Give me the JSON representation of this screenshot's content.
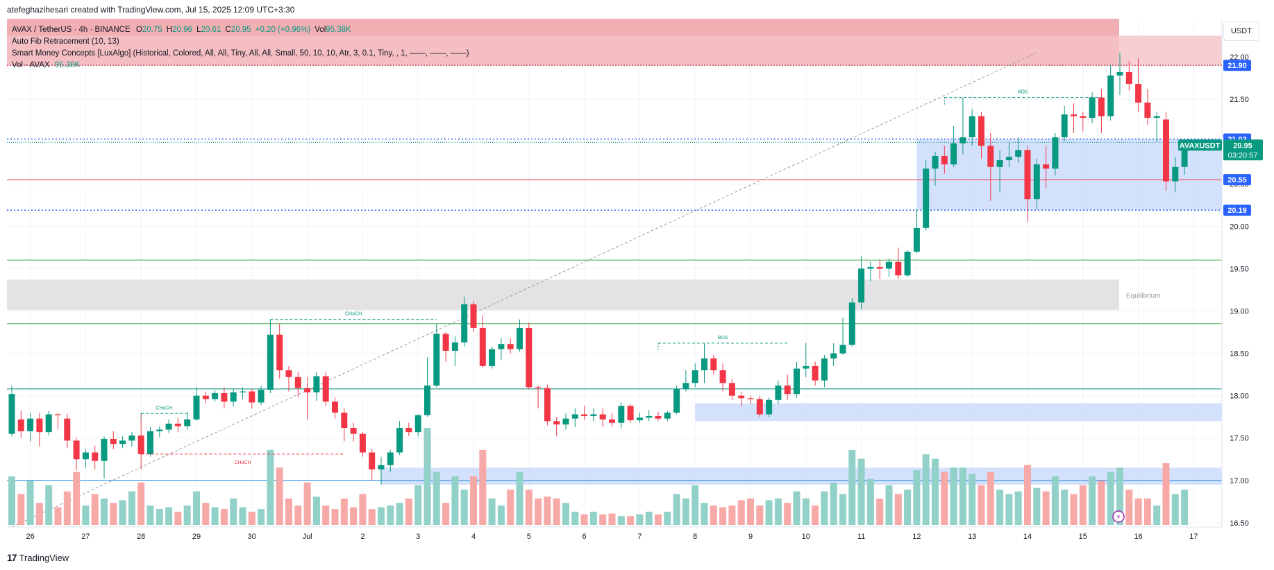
{
  "header": {
    "created_by": "atefeghazihesari created with TradingView.com, Jul 15, 2025 12:09 UTC+3:30"
  },
  "legend": {
    "symbol": "AVAX / TetherUS · 4h · BINANCE",
    "o_label": "O",
    "o": "20.75",
    "h_label": "H",
    "h": "20.96",
    "l_label": "L",
    "l": "20.61",
    "c_label": "C",
    "c": "20.95",
    "change": "+0.20 (+0.96%)",
    "vol_label": "Vol",
    "vol": "95.38K",
    "fib": "Auto Fib Retracement (10, 13)",
    "smc": "Smart Money Concepts [LuxAlgo] (Historical, Colored, All, All, Tiny, All, All, Small, 50, 10, 10, Atr, 3, 0.1, Tiny, , 1, ——, ——, ——)",
    "vol_study": "Vol · AVAX",
    "vol_study_value": "95.38K"
  },
  "currency_button": "USDT",
  "footer": {
    "brand": "TradingView",
    "logo": "tv-logo-icon"
  },
  "colors": {
    "up": "#089981",
    "down": "#f23645",
    "vol_up": "#92d1c8",
    "vol_down": "#f7a9a7",
    "supply_zone": "#f0a8ae",
    "demand_zone": "#cddcfb",
    "equilibrium": "#e3e3e5",
    "fib_line": "#9e9e9e",
    "green_line": "#4caf50",
    "blue_line": "#2962ff"
  },
  "chart_data": {
    "type": "candlestick",
    "timeframe": "4h",
    "ylim": [
      16.45,
      22.45
    ],
    "y_ticks": [
      "16.50",
      "17.00",
      "17.50",
      "18.00",
      "18.50",
      "19.00",
      "19.50",
      "20.00",
      "20.50",
      "21.00",
      "21.50",
      "22.00"
    ],
    "x_ticks": [
      {
        "label": "26",
        "i": 2
      },
      {
        "label": "27",
        "i": 8
      },
      {
        "label": "28",
        "i": 14
      },
      {
        "label": "29",
        "i": 20
      },
      {
        "label": "30",
        "i": 26
      },
      {
        "label": "Jul",
        "i": 32
      },
      {
        "label": "2",
        "i": 38
      },
      {
        "label": "3",
        "i": 44
      },
      {
        "label": "4",
        "i": 50
      },
      {
        "label": "5",
        "i": 56
      },
      {
        "label": "6",
        "i": 62
      },
      {
        "label": "7",
        "i": 68
      },
      {
        "label": "8",
        "i": 74
      },
      {
        "label": "9",
        "i": 80
      },
      {
        "label": "10",
        "i": 86
      },
      {
        "label": "11",
        "i": 92
      },
      {
        "label": "12",
        "i": 98
      },
      {
        "label": "13",
        "i": 104
      },
      {
        "label": "14",
        "i": 110
      },
      {
        "label": "15",
        "i": 116
      },
      {
        "label": "16",
        "i": 122
      },
      {
        "label": "17",
        "i": 128
      }
    ],
    "candles": [
      {
        "o": 17.55,
        "h": 18.12,
        "l": 17.52,
        "c": 18.02,
        "v": 55
      },
      {
        "o": 17.72,
        "h": 17.82,
        "l": 17.5,
        "c": 17.58,
        "v": 35
      },
      {
        "o": 17.58,
        "h": 17.8,
        "l": 17.46,
        "c": 17.73,
        "v": 50
      },
      {
        "o": 17.73,
        "h": 17.8,
        "l": 17.4,
        "c": 17.57,
        "v": 25
      },
      {
        "o": 17.57,
        "h": 17.82,
        "l": 17.53,
        "c": 17.78,
        "v": 45
      },
      {
        "o": 17.78,
        "h": 17.8,
        "l": 17.6,
        "c": 17.77,
        "v": 20
      },
      {
        "o": 17.73,
        "h": 17.79,
        "l": 17.38,
        "c": 17.47,
        "v": 38
      },
      {
        "o": 17.47,
        "h": 17.5,
        "l": 17.12,
        "c": 17.25,
        "v": 60
      },
      {
        "o": 17.25,
        "h": 17.37,
        "l": 17.15,
        "c": 17.33,
        "v": 22
      },
      {
        "o": 17.33,
        "h": 17.41,
        "l": 17.13,
        "c": 17.23,
        "v": 35
      },
      {
        "o": 17.23,
        "h": 17.52,
        "l": 17.02,
        "c": 17.49,
        "v": 30
      },
      {
        "o": 17.49,
        "h": 17.58,
        "l": 17.37,
        "c": 17.43,
        "v": 25
      },
      {
        "o": 17.43,
        "h": 17.52,
        "l": 17.38,
        "c": 17.47,
        "v": 28
      },
      {
        "o": 17.47,
        "h": 17.57,
        "l": 17.4,
        "c": 17.53,
        "v": 38
      },
      {
        "o": 17.53,
        "h": 17.8,
        "l": 17.13,
        "c": 17.31,
        "v": 48
      },
      {
        "o": 17.31,
        "h": 17.63,
        "l": 17.28,
        "c": 17.58,
        "v": 22
      },
      {
        "o": 17.58,
        "h": 17.64,
        "l": 17.51,
        "c": 17.6,
        "v": 18
      },
      {
        "o": 17.6,
        "h": 17.72,
        "l": 17.56,
        "c": 17.67,
        "v": 20
      },
      {
        "o": 17.67,
        "h": 17.74,
        "l": 17.57,
        "c": 17.64,
        "v": 15
      },
      {
        "o": 17.64,
        "h": 17.81,
        "l": 17.6,
        "c": 17.72,
        "v": 22
      },
      {
        "o": 17.72,
        "h": 18.1,
        "l": 17.7,
        "c": 18.0,
        "v": 38
      },
      {
        "o": 18.0,
        "h": 18.05,
        "l": 17.91,
        "c": 17.96,
        "v": 25
      },
      {
        "o": 17.96,
        "h": 18.06,
        "l": 17.93,
        "c": 18.03,
        "v": 20
      },
      {
        "o": 18.03,
        "h": 18.1,
        "l": 17.85,
        "c": 17.93,
        "v": 18
      },
      {
        "o": 17.93,
        "h": 18.08,
        "l": 17.87,
        "c": 18.04,
        "v": 30
      },
      {
        "o": 18.04,
        "h": 18.1,
        "l": 17.96,
        "c": 18.05,
        "v": 20
      },
      {
        "o": 18.05,
        "h": 18.08,
        "l": 17.85,
        "c": 17.92,
        "v": 15
      },
      {
        "o": 17.92,
        "h": 18.12,
        "l": 17.89,
        "c": 18.07,
        "v": 18
      },
      {
        "o": 18.07,
        "h": 18.9,
        "l": 18.03,
        "c": 18.72,
        "v": 85
      },
      {
        "o": 18.72,
        "h": 18.85,
        "l": 18.2,
        "c": 18.3,
        "v": 65
      },
      {
        "o": 18.3,
        "h": 18.35,
        "l": 18.05,
        "c": 18.22,
        "v": 30
      },
      {
        "o": 18.22,
        "h": 18.28,
        "l": 17.98,
        "c": 18.09,
        "v": 22
      },
      {
        "o": 18.09,
        "h": 18.22,
        "l": 17.72,
        "c": 18.04,
        "v": 48
      },
      {
        "o": 18.04,
        "h": 18.28,
        "l": 17.94,
        "c": 18.23,
        "v": 32
      },
      {
        "o": 18.23,
        "h": 18.28,
        "l": 17.88,
        "c": 17.93,
        "v": 22
      },
      {
        "o": 17.93,
        "h": 17.98,
        "l": 17.73,
        "c": 17.8,
        "v": 18
      },
      {
        "o": 17.8,
        "h": 17.85,
        "l": 17.46,
        "c": 17.62,
        "v": 30
      },
      {
        "o": 17.62,
        "h": 17.68,
        "l": 17.46,
        "c": 17.55,
        "v": 20
      },
      {
        "o": 17.55,
        "h": 17.57,
        "l": 17.28,
        "c": 17.33,
        "v": 35
      },
      {
        "o": 17.33,
        "h": 17.37,
        "l": 17.0,
        "c": 17.13,
        "v": 18
      },
      {
        "o": 17.13,
        "h": 17.28,
        "l": 16.95,
        "c": 17.18,
        "v": 20
      },
      {
        "o": 17.18,
        "h": 17.36,
        "l": 17.1,
        "c": 17.33,
        "v": 22
      },
      {
        "o": 17.33,
        "h": 17.7,
        "l": 17.3,
        "c": 17.62,
        "v": 25
      },
      {
        "o": 17.62,
        "h": 17.68,
        "l": 17.52,
        "c": 17.57,
        "v": 30
      },
      {
        "o": 17.57,
        "h": 17.78,
        "l": 17.52,
        "c": 17.77,
        "v": 45
      },
      {
        "o": 17.77,
        "h": 18.45,
        "l": 17.75,
        "c": 18.12,
        "v": 110
      },
      {
        "o": 18.12,
        "h": 18.85,
        "l": 18.1,
        "c": 18.73,
        "v": 60
      },
      {
        "o": 18.73,
        "h": 18.75,
        "l": 18.4,
        "c": 18.53,
        "v": 25
      },
      {
        "o": 18.53,
        "h": 18.7,
        "l": 18.35,
        "c": 18.63,
        "v": 55
      },
      {
        "o": 18.63,
        "h": 19.17,
        "l": 18.58,
        "c": 19.08,
        "v": 40
      },
      {
        "o": 19.08,
        "h": 19.12,
        "l": 18.75,
        "c": 18.8,
        "v": 55
      },
      {
        "o": 18.8,
        "h": 18.95,
        "l": 18.33,
        "c": 18.35,
        "v": 85
      },
      {
        "o": 18.35,
        "h": 18.58,
        "l": 18.32,
        "c": 18.55,
        "v": 30
      },
      {
        "o": 18.55,
        "h": 18.68,
        "l": 18.42,
        "c": 18.61,
        "v": 22
      },
      {
        "o": 18.61,
        "h": 18.68,
        "l": 18.5,
        "c": 18.55,
        "v": 40
      },
      {
        "o": 18.55,
        "h": 18.9,
        "l": 18.52,
        "c": 18.8,
        "v": 60
      },
      {
        "o": 18.8,
        "h": 18.86,
        "l": 18.08,
        "c": 18.1,
        "v": 40
      },
      {
        "o": 18.1,
        "h": 18.12,
        "l": 17.85,
        "c": 18.09,
        "v": 30
      },
      {
        "o": 18.09,
        "h": 18.13,
        "l": 17.65,
        "c": 17.7,
        "v": 32
      },
      {
        "o": 17.7,
        "h": 17.75,
        "l": 17.52,
        "c": 17.66,
        "v": 30
      },
      {
        "o": 17.66,
        "h": 17.79,
        "l": 17.6,
        "c": 17.73,
        "v": 25
      },
      {
        "o": 17.73,
        "h": 17.85,
        "l": 17.63,
        "c": 17.78,
        "v": 15
      },
      {
        "o": 17.78,
        "h": 17.88,
        "l": 17.72,
        "c": 17.76,
        "v": 12
      },
      {
        "o": 17.76,
        "h": 17.85,
        "l": 17.7,
        "c": 17.78,
        "v": 15
      },
      {
        "o": 17.78,
        "h": 17.85,
        "l": 17.63,
        "c": 17.72,
        "v": 12
      },
      {
        "o": 17.72,
        "h": 17.8,
        "l": 17.63,
        "c": 17.68,
        "v": 13
      },
      {
        "o": 17.68,
        "h": 17.92,
        "l": 17.62,
        "c": 17.88,
        "v": 10
      },
      {
        "o": 17.88,
        "h": 17.9,
        "l": 17.68,
        "c": 17.71,
        "v": 10
      },
      {
        "o": 17.71,
        "h": 17.8,
        "l": 17.68,
        "c": 17.74,
        "v": 12
      },
      {
        "o": 17.74,
        "h": 17.83,
        "l": 17.7,
        "c": 17.76,
        "v": 15
      },
      {
        "o": 17.76,
        "h": 17.81,
        "l": 17.7,
        "c": 17.73,
        "v": 12
      },
      {
        "o": 17.73,
        "h": 17.82,
        "l": 17.7,
        "c": 17.8,
        "v": 15
      },
      {
        "o": 17.8,
        "h": 18.12,
        "l": 17.78,
        "c": 18.08,
        "v": 35
      },
      {
        "o": 18.08,
        "h": 18.3,
        "l": 18.05,
        "c": 18.15,
        "v": 30
      },
      {
        "o": 18.15,
        "h": 18.38,
        "l": 18.1,
        "c": 18.3,
        "v": 45
      },
      {
        "o": 18.3,
        "h": 18.62,
        "l": 18.15,
        "c": 18.44,
        "v": 25
      },
      {
        "o": 18.44,
        "h": 18.48,
        "l": 18.25,
        "c": 18.3,
        "v": 22
      },
      {
        "o": 18.3,
        "h": 18.38,
        "l": 18.05,
        "c": 18.15,
        "v": 20
      },
      {
        "o": 18.15,
        "h": 18.2,
        "l": 17.95,
        "c": 18.0,
        "v": 22
      },
      {
        "o": 18.0,
        "h": 18.05,
        "l": 17.88,
        "c": 17.97,
        "v": 28
      },
      {
        "o": 17.97,
        "h": 18.0,
        "l": 17.9,
        "c": 17.96,
        "v": 30
      },
      {
        "o": 17.96,
        "h": 18.0,
        "l": 17.75,
        "c": 17.78,
        "v": 22
      },
      {
        "o": 17.78,
        "h": 17.98,
        "l": 17.75,
        "c": 17.95,
        "v": 28
      },
      {
        "o": 17.95,
        "h": 18.18,
        "l": 17.9,
        "c": 18.12,
        "v": 30
      },
      {
        "o": 18.12,
        "h": 18.25,
        "l": 17.95,
        "c": 18.02,
        "v": 25
      },
      {
        "o": 18.02,
        "h": 18.4,
        "l": 17.97,
        "c": 18.32,
        "v": 38
      },
      {
        "o": 18.32,
        "h": 18.62,
        "l": 18.22,
        "c": 18.35,
        "v": 30
      },
      {
        "o": 18.35,
        "h": 18.4,
        "l": 18.12,
        "c": 18.18,
        "v": 22
      },
      {
        "o": 18.18,
        "h": 18.48,
        "l": 18.1,
        "c": 18.44,
        "v": 38
      },
      {
        "o": 18.44,
        "h": 18.62,
        "l": 18.35,
        "c": 18.5,
        "v": 48
      },
      {
        "o": 18.5,
        "h": 18.92,
        "l": 18.48,
        "c": 18.6,
        "v": 35
      },
      {
        "o": 18.6,
        "h": 19.15,
        "l": 18.58,
        "c": 19.1,
        "v": 85
      },
      {
        "o": 19.1,
        "h": 19.65,
        "l": 19.02,
        "c": 19.5,
        "v": 75
      },
      {
        "o": 19.5,
        "h": 19.58,
        "l": 19.35,
        "c": 19.52,
        "v": 52
      },
      {
        "o": 19.52,
        "h": 19.6,
        "l": 19.38,
        "c": 19.5,
        "v": 30
      },
      {
        "o": 19.5,
        "h": 19.62,
        "l": 19.4,
        "c": 19.58,
        "v": 45
      },
      {
        "o": 19.58,
        "h": 19.75,
        "l": 19.38,
        "c": 19.42,
        "v": 35
      },
      {
        "o": 19.42,
        "h": 19.72,
        "l": 19.4,
        "c": 19.7,
        "v": 40
      },
      {
        "o": 19.7,
        "h": 20.2,
        "l": 19.68,
        "c": 19.98,
        "v": 62
      },
      {
        "o": 19.98,
        "h": 20.78,
        "l": 19.95,
        "c": 20.68,
        "v": 80
      },
      {
        "o": 20.68,
        "h": 20.88,
        "l": 20.48,
        "c": 20.83,
        "v": 75
      },
      {
        "o": 20.83,
        "h": 20.95,
        "l": 20.62,
        "c": 20.73,
        "v": 60
      },
      {
        "o": 20.73,
        "h": 21.18,
        "l": 20.7,
        "c": 20.98,
        "v": 65
      },
      {
        "o": 20.98,
        "h": 21.52,
        "l": 20.85,
        "c": 21.05,
        "v": 65
      },
      {
        "o": 21.05,
        "h": 21.38,
        "l": 20.95,
        "c": 21.3,
        "v": 58
      },
      {
        "o": 21.3,
        "h": 21.35,
        "l": 20.8,
        "c": 20.95,
        "v": 45
      },
      {
        "o": 20.95,
        "h": 21.1,
        "l": 20.3,
        "c": 20.7,
        "v": 60
      },
      {
        "o": 20.7,
        "h": 20.9,
        "l": 20.4,
        "c": 20.78,
        "v": 40
      },
      {
        "o": 20.78,
        "h": 21.0,
        "l": 20.7,
        "c": 20.82,
        "v": 35
      },
      {
        "o": 20.82,
        "h": 21.05,
        "l": 20.75,
        "c": 20.9,
        "v": 38
      },
      {
        "o": 20.9,
        "h": 20.95,
        "l": 20.05,
        "c": 20.32,
        "v": 68
      },
      {
        "o": 20.32,
        "h": 20.8,
        "l": 20.2,
        "c": 20.73,
        "v": 42
      },
      {
        "o": 20.73,
        "h": 20.95,
        "l": 20.45,
        "c": 20.68,
        "v": 38
      },
      {
        "o": 20.68,
        "h": 21.1,
        "l": 20.6,
        "c": 21.05,
        "v": 55
      },
      {
        "o": 21.05,
        "h": 21.42,
        "l": 21.0,
        "c": 21.32,
        "v": 40
      },
      {
        "o": 21.32,
        "h": 21.45,
        "l": 21.1,
        "c": 21.3,
        "v": 35
      },
      {
        "o": 21.3,
        "h": 21.35,
        "l": 21.12,
        "c": 21.28,
        "v": 45
      },
      {
        "o": 21.28,
        "h": 21.58,
        "l": 21.22,
        "c": 21.52,
        "v": 55
      },
      {
        "o": 21.52,
        "h": 21.62,
        "l": 21.1,
        "c": 21.3,
        "v": 50
      },
      {
        "o": 21.3,
        "h": 21.9,
        "l": 21.25,
        "c": 21.78,
        "v": 60
      },
      {
        "o": 21.78,
        "h": 22.05,
        "l": 21.55,
        "c": 21.82,
        "v": 65
      },
      {
        "o": 21.82,
        "h": 21.95,
        "l": 21.6,
        "c": 21.68,
        "v": 40
      },
      {
        "o": 21.68,
        "h": 21.98,
        "l": 21.35,
        "c": 21.46,
        "v": 30
      },
      {
        "o": 21.46,
        "h": 21.62,
        "l": 21.2,
        "c": 21.28,
        "v": 30
      },
      {
        "o": 21.28,
        "h": 21.35,
        "l": 21.0,
        "c": 21.3,
        "v": 22
      },
      {
        "o": 21.26,
        "h": 21.35,
        "l": 20.42,
        "c": 20.53,
        "v": 70
      },
      {
        "o": 20.53,
        "h": 20.82,
        "l": 20.4,
        "c": 20.7,
        "v": 35
      },
      {
        "o": 20.7,
        "h": 20.96,
        "l": 20.61,
        "c": 20.95,
        "v": 40
      }
    ],
    "zones": {
      "premium_top": [
        21.9,
        22.45
      ],
      "strong_high_band": [
        22.25,
        22.45
      ],
      "equilibrium": [
        19.01,
        19.37
      ],
      "demand_block_right": [
        20.19,
        21.03
      ],
      "demand_block_mid": [
        17.7,
        17.91
      ],
      "demand_block_low": [
        16.95,
        17.15
      ]
    },
    "levels": {
      "red_dotted": 21.9,
      "blue_dotted_top": 21.03,
      "blue_dotted_bottom": 20.19,
      "red_solid": 20.55,
      "green_1": 19.6,
      "green_2": 18.85,
      "teal": 18.08,
      "blue_solid": 17.0,
      "current": 20.95
    },
    "structure_labels": [
      {
        "text": "CHoCH",
        "price": 17.79,
        "i_from": 14,
        "i_to": 19,
        "color": "#089981"
      },
      {
        "text": "CHoCH",
        "price": 17.31,
        "i_from": 14,
        "i_to": 36,
        "color": "#f23645"
      },
      {
        "text": "CHoCH",
        "price": 18.9,
        "i_from": 28,
        "i_to": 46,
        "color": "#089981"
      },
      {
        "text": "BOS",
        "price": 18.62,
        "i_from": 70,
        "i_to": 84,
        "color": "#089981"
      },
      {
        "text": "BOS",
        "price": 21.52,
        "i_from": 101,
        "i_to": 118,
        "color": "#089981"
      }
    ],
    "price_labels": [
      {
        "text": "21.90",
        "price": 21.9,
        "bg": "#2962ff"
      },
      {
        "text": "21.03",
        "price": 21.03,
        "bg": "#2962ff"
      },
      {
        "text": "20.55",
        "price": 20.55,
        "bg": "#2962ff"
      },
      {
        "text": "20.19",
        "price": 20.19,
        "bg": "#2962ff"
      }
    ],
    "current_price": {
      "symbol": "AVAXUSDT",
      "price": "20.95",
      "countdown": "03:20:57"
    },
    "zone_text": {
      "equilibrium": "Equilibrium"
    }
  }
}
